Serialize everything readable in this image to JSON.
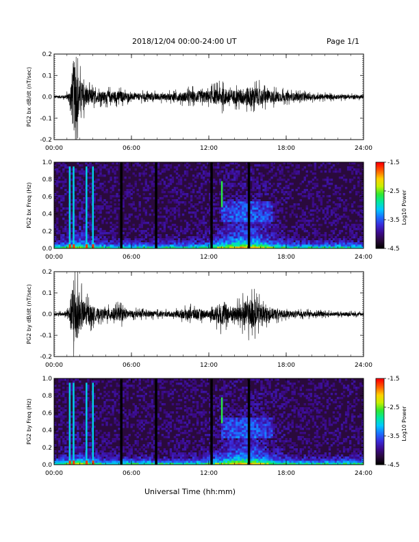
{
  "header": {
    "title": "2018/12/04  00:00-24:00 UT",
    "page": "Page 1/1"
  },
  "footer": {
    "xlabel": "Universal Time (hh:mm)"
  },
  "time_ticks": [
    "00:00",
    "06:00",
    "12:00",
    "18:00",
    "24:00"
  ],
  "colors": {
    "colormap": [
      "#000000",
      "#2a0a3c",
      "#3c0a8c",
      "#3a2ad8",
      "#1a70ff",
      "#00c8ff",
      "#00e8a0",
      "#30e830",
      "#c8f000",
      "#ffd000",
      "#ff6000",
      "#ff0000"
    ],
    "trace": "#000000"
  },
  "chart_data": [
    {
      "type": "line",
      "ylabel": "PG2 bx dB/dt (nT/sec)",
      "ylim": [
        -0.2,
        0.2
      ],
      "yticks": [
        "0.2",
        "0.1",
        "0.0",
        "-0.1",
        "-0.2"
      ],
      "xlim_hours": [
        0,
        24
      ],
      "activity": [
        {
          "t": 0.0,
          "amp": 0.008
        },
        {
          "t": 0.9,
          "amp": 0.01
        },
        {
          "t": 1.2,
          "amp": 0.03
        },
        {
          "t": 1.5,
          "amp": 0.22
        },
        {
          "t": 2.0,
          "amp": 0.1
        },
        {
          "t": 2.6,
          "amp": 0.05
        },
        {
          "t": 3.5,
          "amp": 0.03
        },
        {
          "t": 5.0,
          "amp": 0.035
        },
        {
          "t": 6.0,
          "amp": 0.02
        },
        {
          "t": 9.0,
          "amp": 0.02
        },
        {
          "t": 11.0,
          "amp": 0.035
        },
        {
          "t": 12.0,
          "amp": 0.035
        },
        {
          "t": 13.0,
          "amp": 0.05
        },
        {
          "t": 14.0,
          "amp": 0.04
        },
        {
          "t": 15.3,
          "amp": 0.06
        },
        {
          "t": 16.5,
          "amp": 0.04
        },
        {
          "t": 18.0,
          "amp": 0.025
        },
        {
          "t": 21.0,
          "amp": 0.015
        },
        {
          "t": 24.0,
          "amp": 0.01
        }
      ]
    },
    {
      "type": "heatmap",
      "ylabel": "PG2 bx Freq (Hz)",
      "ylim": [
        0.0,
        1.0
      ],
      "yticks": [
        "1.0",
        "0.8",
        "0.6",
        "0.4",
        "0.2",
        "0.0"
      ],
      "xlim_hours": [
        0,
        24
      ],
      "colorbar_label": "Log10 Power",
      "colorbar_range": [
        -4.5,
        -1.5
      ],
      "colorbar_ticks": [
        "-1.5",
        "-2.5",
        "-3.5",
        "-4.5"
      ],
      "gaps_hours": [
        5.2,
        7.9,
        12.2,
        15.1
      ],
      "lines_hours": [
        1.2,
        1.5,
        2.5,
        3.0
      ],
      "streak_hours": 13.0
    },
    {
      "type": "line",
      "ylabel": "PG2 by dB/dt (nT/sec)",
      "ylim": [
        -0.2,
        0.2
      ],
      "yticks": [
        "0.2",
        "0.1",
        "0.0",
        "-0.1",
        "-0.2"
      ],
      "xlim_hours": [
        0,
        24
      ],
      "activity": [
        {
          "t": 0.0,
          "amp": 0.008
        },
        {
          "t": 0.9,
          "amp": 0.012
        },
        {
          "t": 1.2,
          "amp": 0.05
        },
        {
          "t": 1.5,
          "amp": 0.22
        },
        {
          "t": 2.0,
          "amp": 0.1
        },
        {
          "t": 2.6,
          "amp": 0.06
        },
        {
          "t": 3.5,
          "amp": 0.03
        },
        {
          "t": 5.2,
          "amp": 0.04
        },
        {
          "t": 6.0,
          "amp": 0.02
        },
        {
          "t": 9.0,
          "amp": 0.015
        },
        {
          "t": 11.0,
          "amp": 0.035
        },
        {
          "t": 12.0,
          "amp": 0.02
        },
        {
          "t": 13.0,
          "amp": 0.07
        },
        {
          "t": 14.0,
          "amp": 0.04
        },
        {
          "t": 15.2,
          "amp": 0.09
        },
        {
          "t": 16.5,
          "amp": 0.04
        },
        {
          "t": 18.0,
          "amp": 0.02
        },
        {
          "t": 21.0,
          "amp": 0.012
        },
        {
          "t": 24.0,
          "amp": 0.01
        }
      ]
    },
    {
      "type": "heatmap",
      "ylabel": "PG2 by Freq (Hz)",
      "ylim": [
        0.0,
        1.0
      ],
      "yticks": [
        "1.0",
        "0.8",
        "0.6",
        "0.4",
        "0.2",
        "0.0"
      ],
      "xlim_hours": [
        0,
        24
      ],
      "colorbar_label": "Log10 Power",
      "colorbar_range": [
        -4.5,
        -1.5
      ],
      "colorbar_ticks": [
        "-1.5",
        "-2.5",
        "-3.5",
        "-4.5"
      ],
      "gaps_hours": [
        5.2,
        7.9,
        12.2,
        15.1
      ],
      "lines_hours": [
        1.2,
        1.5,
        2.5,
        3.0
      ],
      "streak_hours": 13.0
    }
  ]
}
